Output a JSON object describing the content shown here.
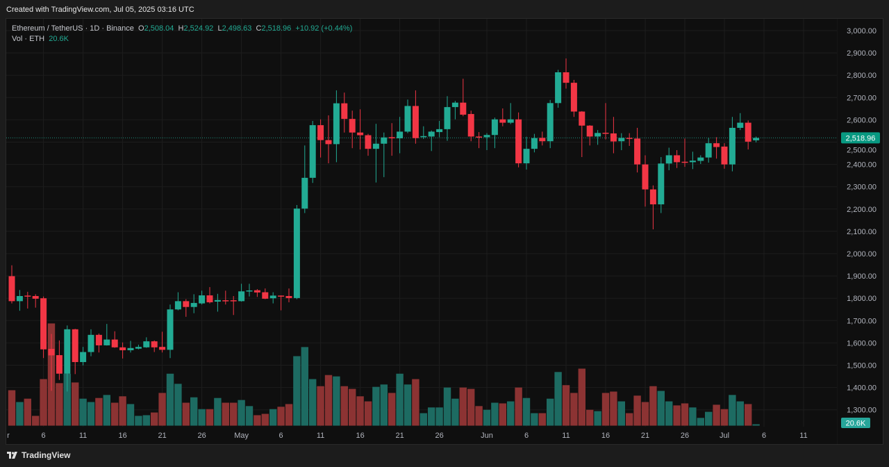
{
  "header": {
    "created": "Created with TradingView.com, Jul 05, 2025 03:16 UTC"
  },
  "legend": {
    "symbol": "Ethereum / TetherUS · 1D · Binance",
    "open_label": "O",
    "open": "2,508.04",
    "high_label": "H",
    "high": "2,524.92",
    "low_label": "L",
    "low": "2,498.63",
    "close_label": "C",
    "close": "2,518.96",
    "change": "+10.92 (+0.44%)",
    "volume_label": "Vol · ETH",
    "volume": "20.6K"
  },
  "footer": {
    "brand": "TradingView",
    "logo_icon": "tradingview-logo-icon"
  },
  "colors": {
    "up": "#22ab94",
    "down": "#f23645",
    "vol_up": "#1d6b62",
    "vol_down": "#8c3333",
    "background": "#0f0f0f"
  },
  "chart_data": {
    "type": "candlestick",
    "symbol": "ETHUSDT",
    "interval": "1D",
    "ylim": [
      1250,
      3050
    ],
    "grid": true,
    "price_ticks": [
      "3,000.00",
      "2,900.00",
      "2,800.00",
      "2,700.00",
      "2,600.00",
      "2,500.00",
      "2,400.00",
      "2,300.00",
      "2,200.00",
      "2,100.00",
      "2,000.00",
      "1,900.00",
      "1,800.00",
      "1,700.00",
      "1,600.00",
      "1,500.00",
      "1,400.00",
      "1,300.00"
    ],
    "x_ticks": [
      {
        "date": "2025-04-01",
        "label": "r"
      },
      {
        "date": "2025-04-06",
        "label": "6"
      },
      {
        "date": "2025-04-11",
        "label": "11"
      },
      {
        "date": "2025-04-16",
        "label": "16"
      },
      {
        "date": "2025-04-21",
        "label": "21"
      },
      {
        "date": "2025-04-26",
        "label": "26"
      },
      {
        "date": "2025-05-01",
        "label": "May"
      },
      {
        "date": "2025-05-06",
        "label": "6"
      },
      {
        "date": "2025-05-11",
        "label": "11"
      },
      {
        "date": "2025-05-16",
        "label": "16"
      },
      {
        "date": "2025-05-21",
        "label": "21"
      },
      {
        "date": "2025-05-26",
        "label": "26"
      },
      {
        "date": "2025-06-01",
        "label": "Jun"
      },
      {
        "date": "2025-06-06",
        "label": "6"
      },
      {
        "date": "2025-06-11",
        "label": "11"
      },
      {
        "date": "2025-06-16",
        "label": "16"
      },
      {
        "date": "2025-06-21",
        "label": "21"
      },
      {
        "date": "2025-06-26",
        "label": "26"
      },
      {
        "date": "2025-07-01",
        "label": "Jul"
      },
      {
        "date": "2025-07-06",
        "label": "6"
      },
      {
        "date": "2025-07-11",
        "label": "11"
      }
    ],
    "last_price_label": "2,518.96",
    "last_price": 2518.96,
    "last_volume_label": "20.6K",
    "volume_unit": "K ETH",
    "candles_columns": [
      "date",
      "open",
      "high",
      "low",
      "close",
      "volume"
    ],
    "candles": [
      [
        "2025-04-02",
        1899,
        1948,
        1777,
        1787,
        525
      ],
      [
        "2025-04-03",
        1787,
        1837,
        1744,
        1810,
        350
      ],
      [
        "2025-04-04",
        1812,
        1829,
        1754,
        1808,
        400
      ],
      [
        "2025-04-05",
        1810,
        1818,
        1758,
        1798,
        145
      ],
      [
        "2025-04-06",
        1800,
        1808,
        1532,
        1571,
        690
      ],
      [
        "2025-04-07",
        1573,
        1640,
        1385,
        1544,
        1515
      ],
      [
        "2025-04-08",
        1545,
        1611,
        1434,
        1462,
        630
      ],
      [
        "2025-04-09",
        1462,
        1678,
        1382,
        1661,
        770
      ],
      [
        "2025-04-10",
        1661,
        1663,
        1460,
        1514,
        640
      ],
      [
        "2025-04-11",
        1514,
        1582,
        1499,
        1559,
        400
      ],
      [
        "2025-04-12",
        1559,
        1661,
        1540,
        1636,
        350
      ],
      [
        "2025-04-13",
        1636,
        1642,
        1557,
        1589,
        410
      ],
      [
        "2025-04-14",
        1589,
        1685,
        1588,
        1615,
        455
      ],
      [
        "2025-04-15",
        1615,
        1652,
        1578,
        1580,
        340
      ],
      [
        "2025-04-16",
        1580,
        1602,
        1530,
        1567,
        435
      ],
      [
        "2025-04-17",
        1567,
        1609,
        1557,
        1577,
        320
      ],
      [
        "2025-04-18",
        1574,
        1592,
        1571,
        1582,
        145
      ],
      [
        "2025-04-19",
        1580,
        1625,
        1578,
        1607,
        155
      ],
      [
        "2025-04-20",
        1607,
        1611,
        1559,
        1580,
        195
      ],
      [
        "2025-04-21",
        1582,
        1650,
        1557,
        1569,
        485
      ],
      [
        "2025-04-22",
        1569,
        1772,
        1532,
        1750,
        770
      ],
      [
        "2025-04-23",
        1750,
        1827,
        1746,
        1787,
        620
      ],
      [
        "2025-04-24",
        1787,
        1796,
        1717,
        1761,
        340
      ],
      [
        "2025-04-25",
        1761,
        1818,
        1733,
        1779,
        420
      ],
      [
        "2025-04-26",
        1777,
        1834,
        1772,
        1813,
        245
      ],
      [
        "2025-04-27",
        1813,
        1850,
        1777,
        1782,
        245
      ],
      [
        "2025-04-28",
        1785,
        1820,
        1740,
        1792,
        410
      ],
      [
        "2025-04-29",
        1791,
        1834,
        1772,
        1788,
        340
      ],
      [
        "2025-04-30",
        1791,
        1810,
        1725,
        1787,
        340
      ],
      [
        "2025-05-01",
        1787,
        1865,
        1785,
        1831,
        380
      ],
      [
        "2025-05-02",
        1831,
        1865,
        1808,
        1835,
        290
      ],
      [
        "2025-05-03",
        1836,
        1841,
        1806,
        1826,
        155
      ],
      [
        "2025-05-04",
        1827,
        1844,
        1796,
        1798,
        175
      ],
      [
        "2025-05-05",
        1800,
        1827,
        1777,
        1812,
        245
      ],
      [
        "2025-05-06",
        1812,
        1813,
        1746,
        1808,
        280
      ],
      [
        "2025-05-07",
        1810,
        1844,
        1782,
        1801,
        320
      ],
      [
        "2025-05-08",
        1801,
        2218,
        1796,
        2202,
        1030
      ],
      [
        "2025-05-09",
        2202,
        2485,
        2182,
        2340,
        1165
      ],
      [
        "2025-05-10",
        2340,
        2595,
        2317,
        2576,
        690
      ],
      [
        "2025-05-11",
        2576,
        2602,
        2431,
        2509,
        585
      ],
      [
        "2025-05-12",
        2509,
        2620,
        2405,
        2491,
        750
      ],
      [
        "2025-05-13",
        2491,
        2732,
        2410,
        2674,
        730
      ],
      [
        "2025-05-14",
        2674,
        2722,
        2543,
        2604,
        585
      ],
      [
        "2025-05-15",
        2604,
        2641,
        2473,
        2543,
        545
      ],
      [
        "2025-05-16",
        2543,
        2647,
        2467,
        2531,
        435
      ],
      [
        "2025-05-17",
        2531,
        2537,
        2439,
        2470,
        360
      ],
      [
        "2025-05-18",
        2470,
        2582,
        2319,
        2493,
        575
      ],
      [
        "2025-05-19",
        2493,
        2543,
        2343,
        2521,
        610
      ],
      [
        "2025-05-20",
        2522,
        2585,
        2439,
        2517,
        485
      ],
      [
        "2025-05-21",
        2517,
        2613,
        2450,
        2547,
        770
      ],
      [
        "2025-05-22",
        2547,
        2691,
        2540,
        2662,
        610
      ],
      [
        "2025-05-23",
        2662,
        2732,
        2493,
        2518,
        690
      ],
      [
        "2025-05-24",
        2522,
        2571,
        2514,
        2527,
        185
      ],
      [
        "2025-05-25",
        2525,
        2552,
        2460,
        2547,
        270
      ],
      [
        "2025-05-26",
        2545,
        2595,
        2522,
        2558,
        270
      ],
      [
        "2025-05-27",
        2558,
        2706,
        2506,
        2657,
        565
      ],
      [
        "2025-05-28",
        2657,
        2685,
        2602,
        2677,
        400
      ],
      [
        "2025-05-29",
        2677,
        2784,
        2616,
        2623,
        565
      ],
      [
        "2025-05-30",
        2626,
        2641,
        2504,
        2525,
        545
      ],
      [
        "2025-05-31",
        2525,
        2545,
        2473,
        2521,
        290
      ],
      [
        "2025-06-01",
        2522,
        2540,
        2464,
        2532,
        235
      ],
      [
        "2025-06-02",
        2532,
        2610,
        2473,
        2602,
        340
      ],
      [
        "2025-06-03",
        2602,
        2651,
        2571,
        2587,
        330
      ],
      [
        "2025-06-04",
        2587,
        2675,
        2581,
        2602,
        360
      ],
      [
        "2025-06-05",
        2602,
        2633,
        2387,
        2405,
        565
      ],
      [
        "2025-06-06",
        2405,
        2524,
        2377,
        2470,
        410
      ],
      [
        "2025-06-07",
        2470,
        2537,
        2454,
        2518,
        185
      ],
      [
        "2025-06-08",
        2519,
        2547,
        2485,
        2504,
        185
      ],
      [
        "2025-06-09",
        2504,
        2689,
        2473,
        2675,
        400
      ],
      [
        "2025-06-10",
        2675,
        2824,
        2654,
        2813,
        795
      ],
      [
        "2025-06-11",
        2813,
        2875,
        2740,
        2766,
        600
      ],
      [
        "2025-06-12",
        2766,
        2779,
        2613,
        2637,
        485
      ],
      [
        "2025-06-13",
        2637,
        2639,
        2433,
        2574,
        845
      ],
      [
        "2025-06-14",
        2574,
        2576,
        2485,
        2525,
        235
      ],
      [
        "2025-06-15",
        2525,
        2554,
        2488,
        2541,
        215
      ],
      [
        "2025-06-16",
        2542,
        2675,
        2512,
        2539,
        485
      ],
      [
        "2025-06-17",
        2539,
        2613,
        2450,
        2503,
        505
      ],
      [
        "2025-06-18",
        2504,
        2540,
        2464,
        2519,
        360
      ],
      [
        "2025-06-19",
        2519,
        2540,
        2483,
        2516,
        185
      ],
      [
        "2025-06-20",
        2516,
        2564,
        2364,
        2400,
        445
      ],
      [
        "2025-06-21",
        2400,
        2441,
        2211,
        2288,
        350
      ],
      [
        "2025-06-22",
        2288,
        2306,
        2109,
        2221,
        585
      ],
      [
        "2025-06-23",
        2221,
        2433,
        2182,
        2404,
        515
      ],
      [
        "2025-06-24",
        2404,
        2475,
        2374,
        2441,
        360
      ],
      [
        "2025-06-25",
        2441,
        2464,
        2384,
        2410,
        300
      ],
      [
        "2025-06-26",
        2412,
        2516,
        2389,
        2408,
        330
      ],
      [
        "2025-06-27",
        2410,
        2457,
        2379,
        2417,
        270
      ],
      [
        "2025-06-28",
        2416,
        2441,
        2402,
        2431,
        115
      ],
      [
        "2025-06-29",
        2431,
        2519,
        2408,
        2495,
        205
      ],
      [
        "2025-06-30",
        2495,
        2522,
        2426,
        2478,
        310
      ],
      [
        "2025-07-01",
        2480,
        2495,
        2381,
        2400,
        245
      ],
      [
        "2025-07-02",
        2400,
        2613,
        2369,
        2564,
        455
      ],
      [
        "2025-07-03",
        2564,
        2630,
        2554,
        2587,
        360
      ],
      [
        "2025-07-04",
        2587,
        2597,
        2467,
        2502,
        320
      ],
      [
        "2025-07-05",
        2508.04,
        2524.92,
        2498.63,
        2518.96,
        20.6
      ]
    ]
  }
}
